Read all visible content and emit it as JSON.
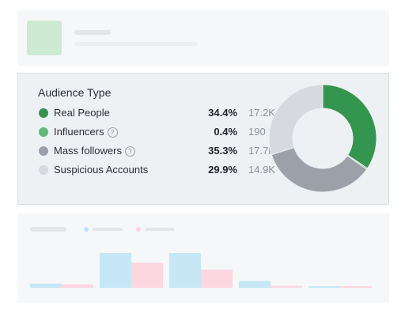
{
  "chart_data": {
    "type": "pie",
    "title": "Audience Type",
    "categories": [
      "Real People",
      "Influencers",
      "Mass followers",
      "Suspicious Accounts"
    ],
    "values": [
      34.4,
      0.4,
      35.3,
      29.9
    ],
    "percent_labels": [
      "34.4%",
      "0.4%",
      "35.3%",
      "29.9%"
    ],
    "counts": [
      "17.2K",
      "190",
      "17.7K",
      "14.9K"
    ],
    "colors": [
      "#34954f",
      "#5dbb76",
      "#9aa1a8",
      "#d6dade"
    ],
    "donut": true
  },
  "rows": [
    {
      "label": "Real People",
      "help": false
    },
    {
      "label": "Influencers",
      "help": true
    },
    {
      "label": "Mass followers",
      "help": true
    },
    {
      "label": "Suspicious Accounts",
      "help": false
    }
  ],
  "help_glyph": "?",
  "background_chart": {
    "type": "bar",
    "series": [
      {
        "color": "#c6e8f6",
        "values": [
          0.12,
          1.0,
          1.0,
          0.2,
          0.04
        ]
      },
      {
        "color": "#fcd7e0",
        "values": [
          0.1,
          0.72,
          0.52,
          0.06,
          0.02
        ]
      }
    ]
  }
}
